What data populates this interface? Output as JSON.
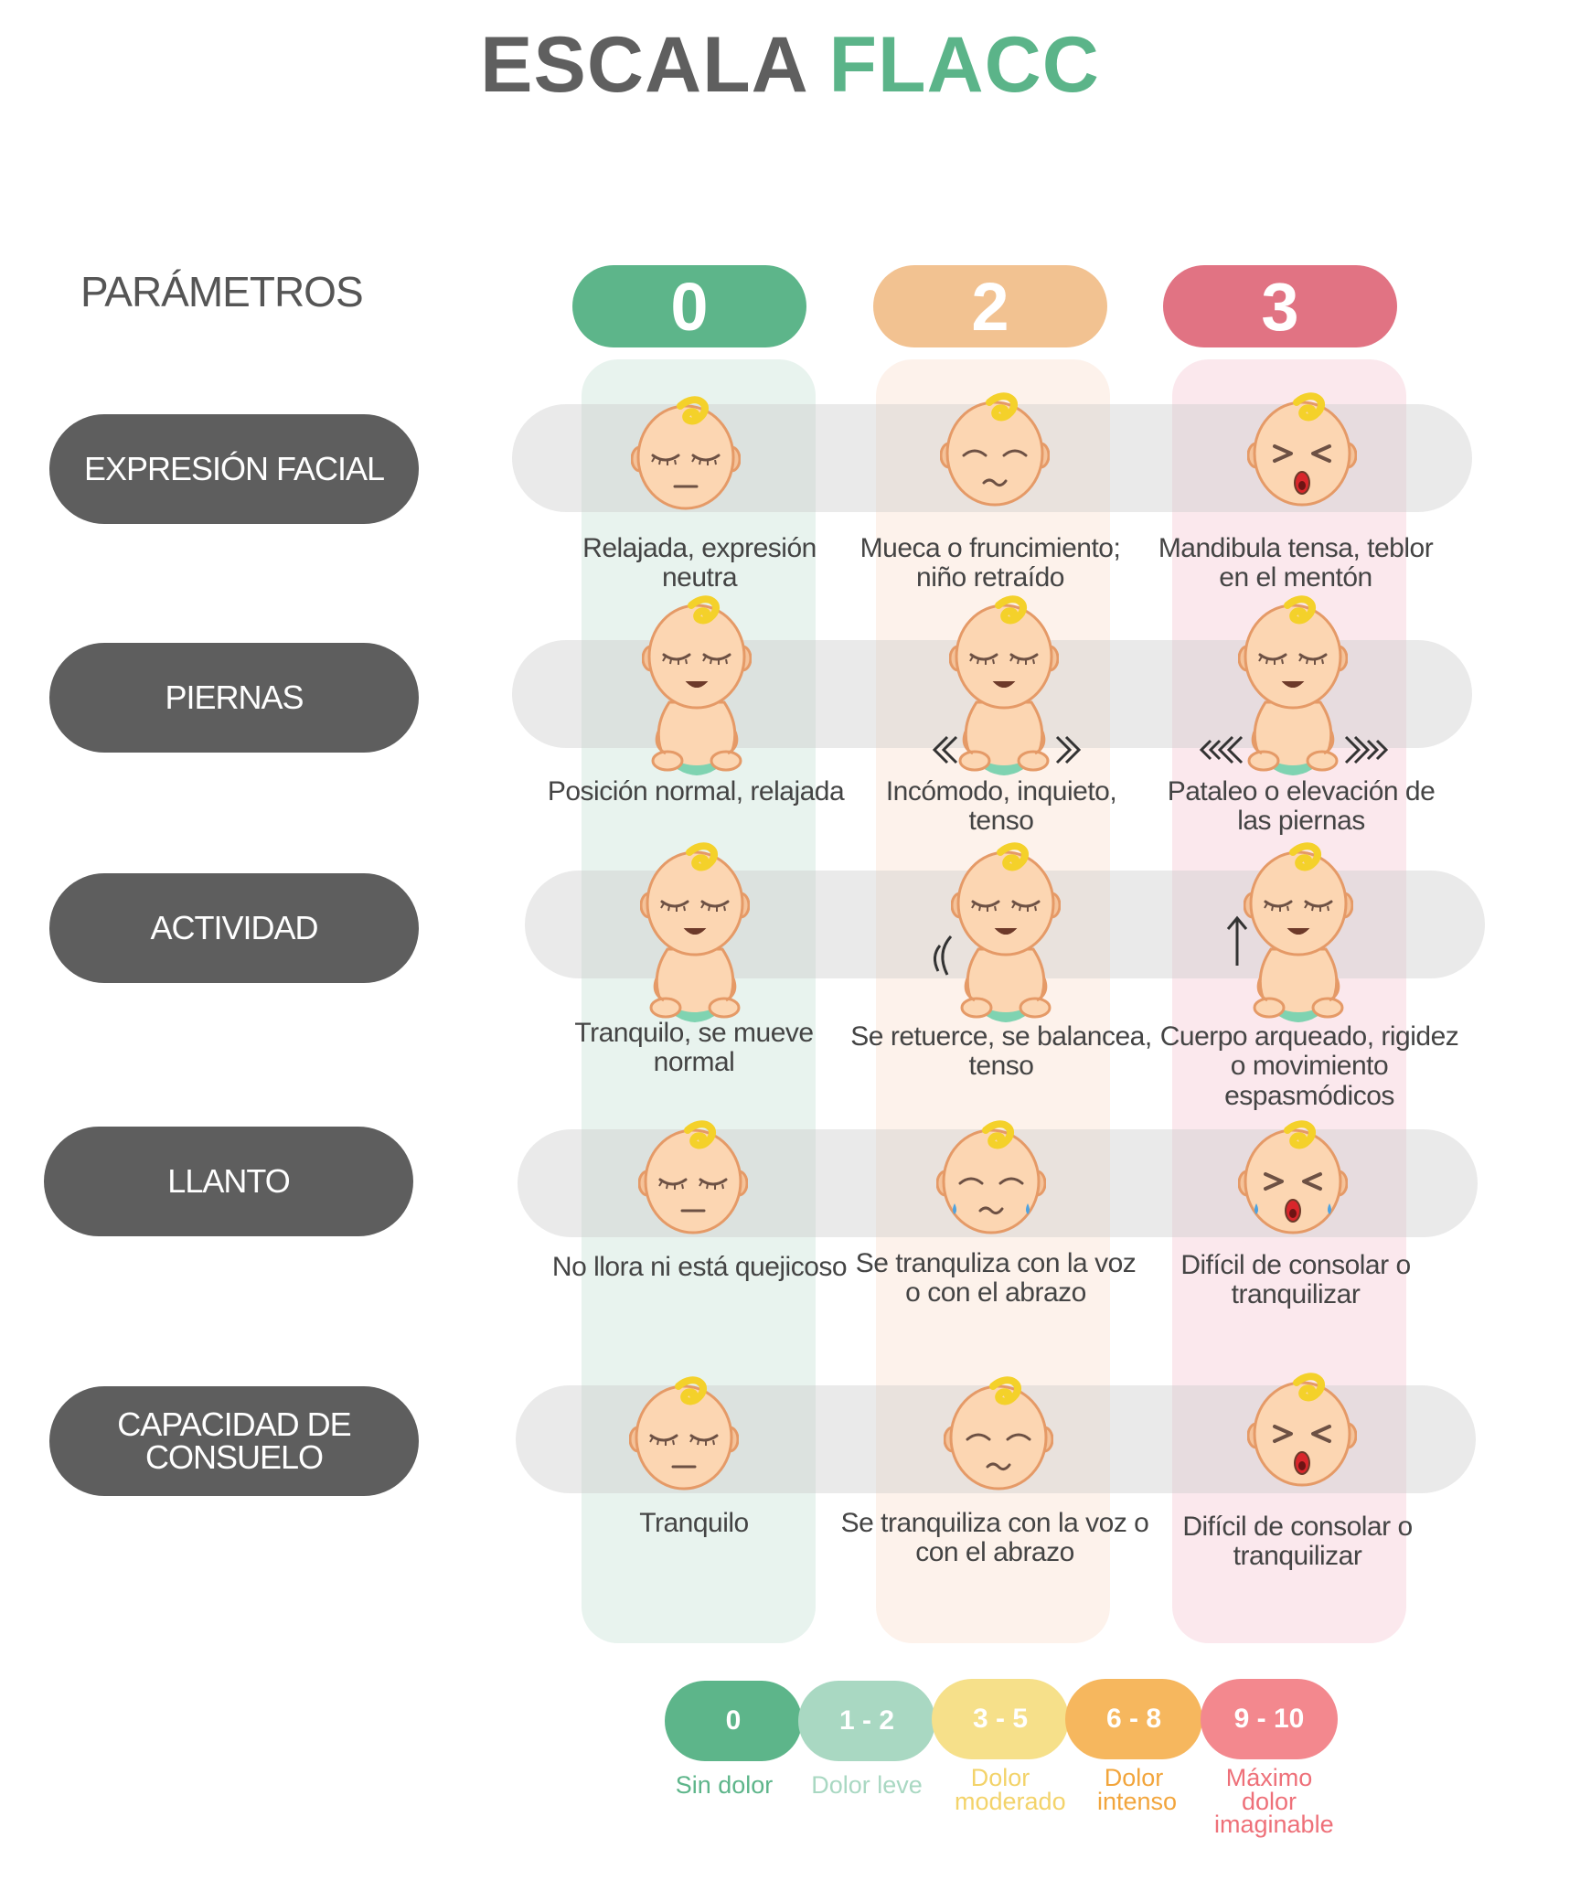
{
  "title": {
    "part1": "ESCALA",
    "part2": "FLACC"
  },
  "parameters_heading": "PARÁMETROS",
  "scores": [
    {
      "label": "0",
      "color": "#5db58a",
      "column_bg": "#e8f3ee"
    },
    {
      "label": "2",
      "color": "#f2c291",
      "column_bg": "#fdf2eb"
    },
    {
      "label": "3",
      "color": "#e17383",
      "column_bg": "#fbe8ed"
    }
  ],
  "parameters": [
    {
      "label": "EXPRESIÓN FACIAL",
      "descriptions": [
        "Relajada, expresión neutra",
        "Mueca o fruncimiento; niño retraído",
        "Mandibula tensa, teblor en el mentón"
      ]
    },
    {
      "label": "PIERNAS",
      "descriptions": [
        "Posición normal, relajada",
        "Incómodo, inquieto, tenso",
        "Pataleo o elevación de las piernas"
      ]
    },
    {
      "label": "ACTIVIDAD",
      "descriptions": [
        "Tranquilo, se mueve normal",
        "Se retuerce, se balancea, tenso",
        "Cuerpo arqueado, rigidez o movimiento espasmódicos"
      ]
    },
    {
      "label": "LLANTO",
      "descriptions": [
        "No llora ni está quejicoso",
        "Se tranquliza con la voz o con el abrazo",
        "Difícil de consolar o tranquilizar"
      ]
    },
    {
      "label": "CAPACIDAD DE CONSUELO",
      "descriptions": [
        "Tranquilo",
        "Se tranquiliza con la voz o con el abrazo",
        "Difícil de consolar o tranquilizar"
      ]
    }
  ],
  "legend": [
    {
      "range": "0",
      "label": "Sin dolor",
      "color": "#5db58a",
      "text_color": "#5db58a"
    },
    {
      "range": "1 - 2",
      "label": "Dolor leve",
      "color": "#a9d8c2",
      "text_color": "#a9d8c2"
    },
    {
      "range": "3 - 5",
      "label": "Dolor moderado",
      "color": "#f6e08a",
      "text_color": "#f3d36a"
    },
    {
      "range": "6 - 8",
      "label": "Dolor intenso",
      "color": "#f6b75e",
      "text_color": "#f2a53c"
    },
    {
      "range": "9 - 10",
      "label": "Máximo dolor imaginable",
      "color": "#f3888e",
      "text_color": "#ee7079"
    }
  ]
}
